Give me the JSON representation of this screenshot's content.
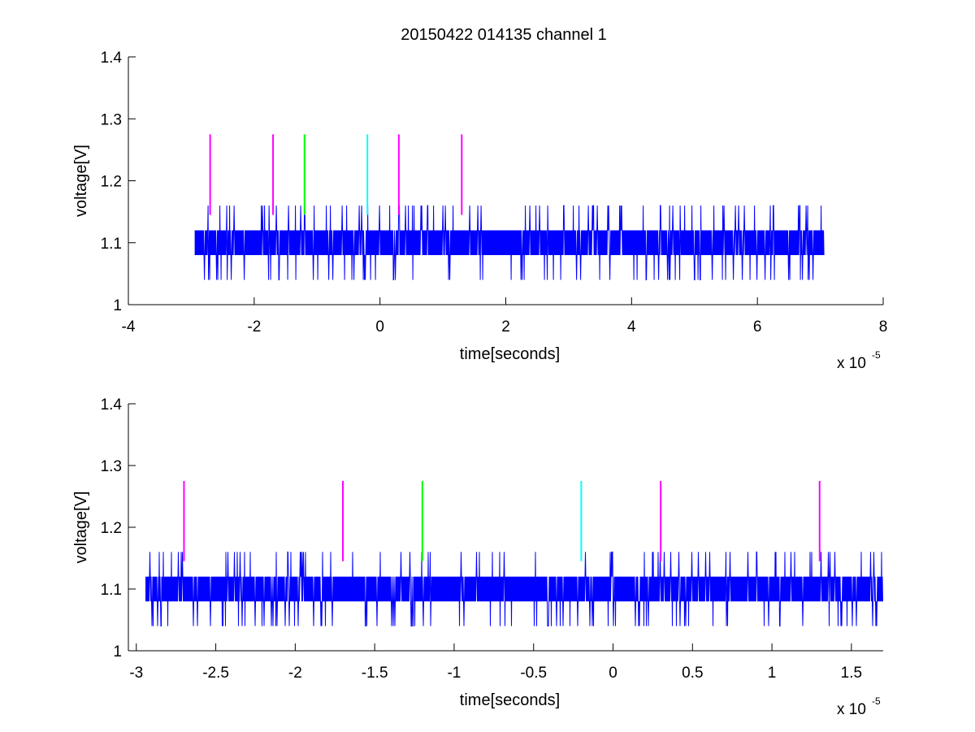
{
  "figure": {
    "title": "20150422 014135 channel 1"
  },
  "chart_data": [
    {
      "type": "line",
      "title": "20150422 014135 channel 1",
      "xlabel": "time[seconds]",
      "ylabel": "voltage[V]",
      "x_multiplier_label": "x 10",
      "x_multiplier_exponent": "-5",
      "xlim": [
        -4,
        8
      ],
      "ylim": [
        1,
        1.4
      ],
      "xticks": [
        -4,
        -2,
        0,
        2,
        4,
        6,
        8
      ],
      "xtick_labels": [
        "-4",
        "-2",
        "0",
        "2",
        "4",
        "6",
        "8"
      ],
      "yticks": [
        1,
        1.1,
        1.2,
        1.3,
        1.4
      ],
      "ytick_labels": [
        "1",
        "1.1",
        "1.2",
        "1.3",
        "1.4"
      ],
      "grid": false,
      "series": [
        {
          "color": "#0000ff",
          "x_range": [
            -2.94,
            7.06
          ],
          "dense_band": [
            1.08,
            1.12
          ],
          "spike_levels": [
            1.04,
            1.16
          ]
        }
      ],
      "markers": [
        {
          "x": -2.7,
          "ymin": 1.145,
          "ymax": 1.275,
          "color": "#ff00ff"
        },
        {
          "x": -1.7,
          "ymin": 1.145,
          "ymax": 1.275,
          "color": "#ff00ff"
        },
        {
          "x": -1.2,
          "ymin": 1.145,
          "ymax": 1.275,
          "color": "#00ff00"
        },
        {
          "x": -0.2,
          "ymin": 1.145,
          "ymax": 1.275,
          "color": "#00ffff"
        },
        {
          "x": 0.3,
          "ymin": 1.145,
          "ymax": 1.275,
          "color": "#ff00ff"
        },
        {
          "x": 1.3,
          "ymin": 1.145,
          "ymax": 1.275,
          "color": "#ff00ff"
        }
      ]
    },
    {
      "type": "line",
      "title": "",
      "xlabel": "time[seconds]",
      "ylabel": "voltage[V]",
      "x_multiplier_label": "x 10",
      "x_multiplier_exponent": "-5",
      "xlim": [
        -3.05,
        1.7
      ],
      "ylim": [
        1,
        1.4
      ],
      "xticks": [
        -3,
        -2.5,
        -2,
        -1.5,
        -1,
        -0.5,
        0,
        0.5,
        1,
        1.5
      ],
      "xtick_labels": [
        "-3",
        "-2.5",
        "-2",
        "-1.5",
        "-1",
        "-0.5",
        "0",
        "0.5",
        "1",
        "1.5"
      ],
      "yticks": [
        1,
        1.1,
        1.2,
        1.3,
        1.4
      ],
      "ytick_labels": [
        "1",
        "1.1",
        "1.2",
        "1.3",
        "1.4"
      ],
      "grid": false,
      "series": [
        {
          "color": "#0000ff",
          "x_range": [
            -2.94,
            1.7
          ],
          "dense_band": [
            1.08,
            1.12
          ],
          "spike_levels": [
            1.04,
            1.16
          ]
        }
      ],
      "markers": [
        {
          "x": -2.7,
          "ymin": 1.145,
          "ymax": 1.275,
          "color": "#ff00ff"
        },
        {
          "x": -1.7,
          "ymin": 1.145,
          "ymax": 1.275,
          "color": "#ff00ff"
        },
        {
          "x": -1.2,
          "ymin": 1.145,
          "ymax": 1.275,
          "color": "#00ff00"
        },
        {
          "x": -0.2,
          "ymin": 1.145,
          "ymax": 1.275,
          "color": "#00ffff"
        },
        {
          "x": 0.3,
          "ymin": 1.145,
          "ymax": 1.275,
          "color": "#ff00ff"
        },
        {
          "x": 1.3,
          "ymin": 1.145,
          "ymax": 1.275,
          "color": "#ff00ff"
        }
      ]
    }
  ]
}
